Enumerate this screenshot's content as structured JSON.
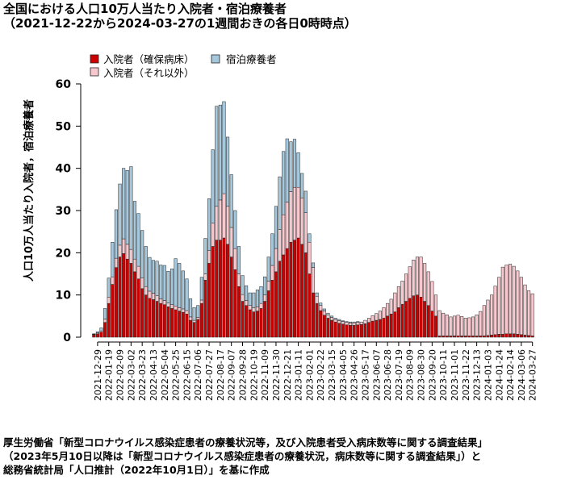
{
  "title": "全国における人口10万人当たり入院者・宿泊療養者",
  "subtitle": "（2021-12-22から2024-03-27の1週間おきの各日0時時点）",
  "source_lines": [
    "厚生労働省「新型コロナウイルス感染症患者の療養状況等，及び入院患者受入病床数等に関する調査結果」",
    "（2023年5月10日以降は「新型コロナウイルス感染症患者の療養状況，病床数等に関する調査結果」）と",
    "総務省統計局「人口推計（2022年10月1日）」を基に作成"
  ],
  "colors": {
    "hospital_severe": "#cc0000",
    "hotel": "#a6c8dd",
    "hospital_other": "#f8c8cf",
    "bar_border": "#222222"
  },
  "chart_data": {
    "type": "bar",
    "stacked": true,
    "title": "全国における人口10万人当たり入院者・宿泊療養者",
    "subtitle": "（2021-12-22から2024-03-27の1週間おきの各日0時時点）",
    "xlabel": "",
    "ylabel": "人口10万人当たり入院者，宿泊療養者",
    "ylim": [
      0,
      60
    ],
    "yticks": [
      0,
      10,
      20,
      30,
      40,
      50,
      60
    ],
    "legend_position": "top",
    "xtick_labels": [
      "2021-12-29",
      "2022-01-19",
      "2022-02-09",
      "2022-03-02",
      "2022-03-23",
      "2022-04-13",
      "2022-05-04",
      "2022-05-25",
      "2022-06-15",
      "2022-07-06",
      "2022-07-27",
      "2022-08-17",
      "2022-09-07",
      "2022-09-28",
      "2022-10-19",
      "2022-11-09",
      "2022-11-30",
      "2022-12-21",
      "2023-01-11",
      "2023-02-01",
      "2023-02-22",
      "2023-03-15",
      "2023-04-05",
      "2023-04-26",
      "2023-05-17",
      "2023-06-07",
      "2023-06-28",
      "2023-07-19",
      "2023-08-09",
      "2023-08-30",
      "2023-09-20",
      "2023-10-11",
      "2023-11-01",
      "2023-11-22",
      "2023-12-13",
      "2024-01-03",
      "2024-01-24",
      "2024-02-14",
      "2024-03-06",
      "2024-03-27"
    ],
    "categories": [
      "2021-12-22",
      "2021-12-29",
      "2022-01-05",
      "2022-01-12",
      "2022-01-19",
      "2022-01-26",
      "2022-02-02",
      "2022-02-09",
      "2022-02-16",
      "2022-02-23",
      "2022-03-02",
      "2022-03-09",
      "2022-03-16",
      "2022-03-23",
      "2022-03-30",
      "2022-04-06",
      "2022-04-13",
      "2022-04-20",
      "2022-04-27",
      "2022-05-04",
      "2022-05-11",
      "2022-05-18",
      "2022-05-25",
      "2022-06-01",
      "2022-06-08",
      "2022-06-15",
      "2022-06-22",
      "2022-06-29",
      "2022-07-06",
      "2022-07-13",
      "2022-07-20",
      "2022-07-27",
      "2022-08-03",
      "2022-08-10",
      "2022-08-17",
      "2022-08-24",
      "2022-08-31",
      "2022-09-07",
      "2022-09-14",
      "2022-09-21",
      "2022-09-28",
      "2022-10-05",
      "2022-10-12",
      "2022-10-19",
      "2022-10-26",
      "2022-11-02",
      "2022-11-09",
      "2022-11-16",
      "2022-11-23",
      "2022-11-30",
      "2022-12-07",
      "2022-12-14",
      "2022-12-21",
      "2022-12-28",
      "2023-01-04",
      "2023-01-11",
      "2023-01-18",
      "2023-01-25",
      "2023-02-01",
      "2023-02-08",
      "2023-02-15",
      "2023-02-22",
      "2023-03-01",
      "2023-03-08",
      "2023-03-15",
      "2023-03-22",
      "2023-03-29",
      "2023-04-05",
      "2023-04-12",
      "2023-04-19",
      "2023-04-26",
      "2023-05-03",
      "2023-05-10",
      "2023-05-17",
      "2023-05-24",
      "2023-05-31",
      "2023-06-07",
      "2023-06-14",
      "2023-06-21",
      "2023-06-28",
      "2023-07-05",
      "2023-07-12",
      "2023-07-19",
      "2023-07-26",
      "2023-08-02",
      "2023-08-09",
      "2023-08-16",
      "2023-08-23",
      "2023-08-30",
      "2023-09-06",
      "2023-09-13",
      "2023-09-20",
      "2023-09-27",
      "2023-10-04",
      "2023-10-11",
      "2023-10-18",
      "2023-10-25",
      "2023-11-01",
      "2023-11-08",
      "2023-11-15",
      "2023-11-22",
      "2023-11-29",
      "2023-12-06",
      "2023-12-13",
      "2023-12-20",
      "2023-12-27",
      "2024-01-03",
      "2024-01-10",
      "2024-01-17",
      "2024-01-24",
      "2024-01-31",
      "2024-02-07",
      "2024-02-14",
      "2024-02-21",
      "2024-02-28",
      "2024-03-06",
      "2024-03-13",
      "2024-03-20",
      "2024-03-27"
    ],
    "series": [
      {
        "name": "入院者（確保病床）",
        "color": "#cc0000",
        "values": [
          0.6,
          0.8,
          1.2,
          3.5,
          8.0,
          12.5,
          16.5,
          19.0,
          19.8,
          18.5,
          17.5,
          15.5,
          13.8,
          11.5,
          10.0,
          9.2,
          8.9,
          8.5,
          8.0,
          7.7,
          7.2,
          6.8,
          6.5,
          6.2,
          5.9,
          5.5,
          4.0,
          3.5,
          4.2,
          8.0,
          13.5,
          17.5,
          21.5,
          23.0,
          23.0,
          23.5,
          22.0,
          19.0,
          16.0,
          12.0,
          8.5,
          7.5,
          6.5,
          6.0,
          6.2,
          6.8,
          8.5,
          11.0,
          13.5,
          15.5,
          18.0,
          19.5,
          21.0,
          22.5,
          23.0,
          23.5,
          22.0,
          20.0,
          15.0,
          10.5,
          8.0,
          6.3,
          5.2,
          4.5,
          4.0,
          3.6,
          3.3,
          3.1,
          2.9,
          2.8,
          2.8,
          2.9,
          3.0,
          3.2,
          3.5,
          3.8,
          4.0,
          4.2,
          4.5,
          5.0,
          5.5,
          6.0,
          7.0,
          7.8,
          8.5,
          9.2,
          9.8,
          10.0,
          9.5,
          8.5,
          7.5,
          6.2,
          5.0,
          0.3,
          0.3,
          0.3,
          0.3,
          0.3,
          0.3,
          0.3,
          0.3,
          0.3,
          0.3,
          0.3,
          0.3,
          0.3,
          0.4,
          0.5,
          0.6,
          0.7,
          0.7,
          0.8,
          0.8,
          0.8,
          0.7,
          0.6,
          0.5,
          0.4,
          0.3
        ]
      },
      {
        "name": "入院者（それ以外）",
        "color": "#f8c8cf",
        "values": [
          0.1,
          0.2,
          0.3,
          0.8,
          1.5,
          1.8,
          2.2,
          2.8,
          3.5,
          3.5,
          3.3,
          3.0,
          3.0,
          2.5,
          2.0,
          1.7,
          1.5,
          1.3,
          1.1,
          1.0,
          0.9,
          0.9,
          0.9,
          0.8,
          0.8,
          0.8,
          0.8,
          0.5,
          0.5,
          0.8,
          1.5,
          3.0,
          5.5,
          8.0,
          9.5,
          10.5,
          9.0,
          7.0,
          5.0,
          3.0,
          1.6,
          1.2,
          1.0,
          1.0,
          1.0,
          1.2,
          1.5,
          2.3,
          3.5,
          5.5,
          7.5,
          9.5,
          11.0,
          12.0,
          12.5,
          12.0,
          11.0,
          9.5,
          7.5,
          6.0,
          1.7,
          1.2,
          1.0,
          0.8,
          0.7,
          0.6,
          0.6,
          0.6,
          0.6,
          0.6,
          0.6,
          0.6,
          0.6,
          0.8,
          1.0,
          1.3,
          1.6,
          2.0,
          2.5,
          3.0,
          3.5,
          4.5,
          5.0,
          5.5,
          6.5,
          7.5,
          8.5,
          9.0,
          9.5,
          9.0,
          8.0,
          7.0,
          5.0,
          6.0,
          5.4,
          5.0,
          4.5,
          4.7,
          4.9,
          4.6,
          4.2,
          4.3,
          4.5,
          5.0,
          5.8,
          7.2,
          8.4,
          9.5,
          11.5,
          13.5,
          15.9,
          16.3,
          16.5,
          16.0,
          15.0,
          13.6,
          11.9,
          10.6,
          10.0
        ]
      },
      {
        "name": "宿泊療養者",
        "color": "#a6c8dd",
        "values": [
          0.1,
          0.3,
          0.7,
          2.5,
          4.5,
          8.2,
          11.5,
          14.5,
          16.7,
          17.5,
          19.6,
          13.7,
          12.5,
          11.3,
          9.5,
          8.0,
          7.8,
          8.2,
          8.0,
          8.3,
          7.5,
          8.5,
          11.2,
          10.5,
          9.0,
          7.5,
          4.3,
          3.0,
          2.8,
          5.4,
          8.4,
          12.3,
          17.4,
          23.7,
          22.5,
          21.8,
          16.4,
          12.5,
          9.0,
          6.5,
          4.5,
          3.5,
          3.0,
          3.5,
          4.0,
          4.0,
          4.3,
          5.7,
          7.5,
          10.0,
          12.5,
          15.0,
          15.0,
          11.8,
          11.4,
          8.2,
          5.8,
          5.1,
          2.0,
          1.1,
          0.8,
          0.6,
          0.5,
          0.4,
          0.3,
          0.3,
          0.3,
          0.2,
          0.2,
          0.2,
          0.2,
          0.2,
          0,
          0,
          0,
          0,
          0,
          0,
          0,
          0,
          0,
          0,
          0,
          0,
          0,
          0,
          0,
          0,
          0,
          0,
          0,
          0,
          0,
          0,
          0,
          0,
          0,
          0,
          0,
          0,
          0,
          0,
          0,
          0,
          0,
          0,
          0,
          0,
          0,
          0,
          0,
          0,
          0,
          0,
          0,
          0,
          0,
          0,
          0
        ]
      }
    ]
  }
}
